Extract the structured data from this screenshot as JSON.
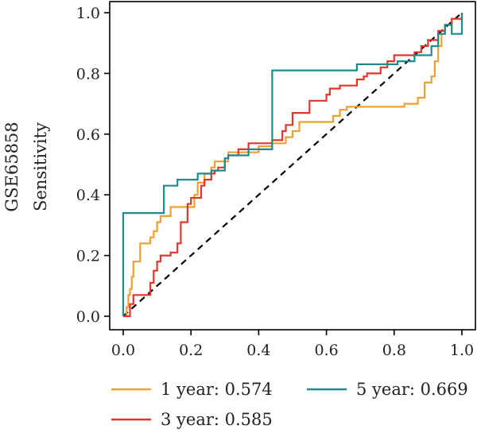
{
  "chart_data": {
    "type": "line",
    "dataset_label": "GSE65858",
    "xlabel": "",
    "ylabel": "Sensitivity",
    "xlim": [
      0,
      1
    ],
    "ylim": [
      0,
      1
    ],
    "x_ticks": [
      "0.0",
      "0.2",
      "0.4",
      "0.6",
      "0.8",
      "1.0"
    ],
    "y_ticks": [
      "0.0",
      "0.2",
      "0.4",
      "0.6",
      "0.8",
      "1.0"
    ],
    "grid": false,
    "legend_position": "bottom",
    "reference_line": {
      "style": "dashed",
      "color": "#000000",
      "from": [
        0,
        0
      ],
      "to": [
        1,
        1
      ]
    },
    "series": [
      {
        "name": "1 year: 0.574",
        "color": "#F0A030",
        "points": [
          [
            0,
            0
          ],
          [
            0.01,
            0
          ],
          [
            0.01,
            0.03
          ],
          [
            0.015,
            0.03
          ],
          [
            0.015,
            0.07
          ],
          [
            0.02,
            0.07
          ],
          [
            0.02,
            0.09
          ],
          [
            0.025,
            0.09
          ],
          [
            0.025,
            0.13
          ],
          [
            0.03,
            0.13
          ],
          [
            0.03,
            0.18
          ],
          [
            0.05,
            0.18
          ],
          [
            0.05,
            0.24
          ],
          [
            0.08,
            0.24
          ],
          [
            0.08,
            0.26
          ],
          [
            0.09,
            0.26
          ],
          [
            0.09,
            0.28
          ],
          [
            0.1,
            0.28
          ],
          [
            0.1,
            0.31
          ],
          [
            0.11,
            0.31
          ],
          [
            0.11,
            0.33
          ],
          [
            0.14,
            0.33
          ],
          [
            0.14,
            0.36
          ],
          [
            0.21,
            0.36
          ],
          [
            0.21,
            0.4
          ],
          [
            0.22,
            0.4
          ],
          [
            0.22,
            0.44
          ],
          [
            0.24,
            0.44
          ],
          [
            0.24,
            0.47
          ],
          [
            0.26,
            0.47
          ],
          [
            0.26,
            0.49
          ],
          [
            0.27,
            0.49
          ],
          [
            0.27,
            0.51
          ],
          [
            0.31,
            0.51
          ],
          [
            0.31,
            0.54
          ],
          [
            0.4,
            0.54
          ],
          [
            0.4,
            0.56
          ],
          [
            0.44,
            0.56
          ],
          [
            0.44,
            0.57
          ],
          [
            0.48,
            0.57
          ],
          [
            0.48,
            0.59
          ],
          [
            0.5,
            0.59
          ],
          [
            0.5,
            0.61
          ],
          [
            0.52,
            0.61
          ],
          [
            0.52,
            0.64
          ],
          [
            0.62,
            0.64
          ],
          [
            0.62,
            0.66
          ],
          [
            0.64,
            0.66
          ],
          [
            0.64,
            0.68
          ],
          [
            0.66,
            0.68
          ],
          [
            0.66,
            0.69
          ],
          [
            0.83,
            0.69
          ],
          [
            0.83,
            0.7
          ],
          [
            0.87,
            0.7
          ],
          [
            0.87,
            0.72
          ],
          [
            0.89,
            0.72
          ],
          [
            0.89,
            0.77
          ],
          [
            0.91,
            0.77
          ],
          [
            0.91,
            0.79
          ],
          [
            0.92,
            0.79
          ],
          [
            0.92,
            0.84
          ],
          [
            0.93,
            0.84
          ],
          [
            0.93,
            0.89
          ],
          [
            0.94,
            0.89
          ],
          [
            0.94,
            0.93
          ],
          [
            0.95,
            0.93
          ],
          [
            0.95,
            0.96
          ],
          [
            0.97,
            0.96
          ],
          [
            0.97,
            0.98
          ],
          [
            1,
            0.98
          ],
          [
            1,
            1
          ]
        ]
      },
      {
        "name": "3 year: 0.585",
        "color": "#E0362C",
        "points": [
          [
            0,
            0
          ],
          [
            0.02,
            0
          ],
          [
            0.02,
            0.04
          ],
          [
            0.03,
            0.04
          ],
          [
            0.03,
            0.07
          ],
          [
            0.08,
            0.07
          ],
          [
            0.08,
            0.11
          ],
          [
            0.09,
            0.11
          ],
          [
            0.09,
            0.15
          ],
          [
            0.1,
            0.15
          ],
          [
            0.1,
            0.18
          ],
          [
            0.11,
            0.18
          ],
          [
            0.11,
            0.2
          ],
          [
            0.14,
            0.2
          ],
          [
            0.14,
            0.21
          ],
          [
            0.16,
            0.21
          ],
          [
            0.16,
            0.24
          ],
          [
            0.17,
            0.24
          ],
          [
            0.17,
            0.31
          ],
          [
            0.19,
            0.31
          ],
          [
            0.19,
            0.37
          ],
          [
            0.2,
            0.37
          ],
          [
            0.2,
            0.39
          ],
          [
            0.23,
            0.39
          ],
          [
            0.23,
            0.43
          ],
          [
            0.24,
            0.43
          ],
          [
            0.24,
            0.45
          ],
          [
            0.26,
            0.45
          ],
          [
            0.26,
            0.47
          ],
          [
            0.27,
            0.47
          ],
          [
            0.27,
            0.48
          ],
          [
            0.28,
            0.48
          ],
          [
            0.28,
            0.49
          ],
          [
            0.3,
            0.49
          ],
          [
            0.3,
            0.52
          ],
          [
            0.31,
            0.52
          ],
          [
            0.31,
            0.53
          ],
          [
            0.34,
            0.53
          ],
          [
            0.34,
            0.55
          ],
          [
            0.37,
            0.55
          ],
          [
            0.37,
            0.57
          ],
          [
            0.44,
            0.57
          ],
          [
            0.44,
            0.58
          ],
          [
            0.47,
            0.58
          ],
          [
            0.47,
            0.61
          ],
          [
            0.48,
            0.61
          ],
          [
            0.48,
            0.63
          ],
          [
            0.5,
            0.63
          ],
          [
            0.5,
            0.67
          ],
          [
            0.55,
            0.67
          ],
          [
            0.55,
            0.71
          ],
          [
            0.6,
            0.71
          ],
          [
            0.6,
            0.73
          ],
          [
            0.61,
            0.73
          ],
          [
            0.61,
            0.75
          ],
          [
            0.64,
            0.75
          ],
          [
            0.64,
            0.76
          ],
          [
            0.69,
            0.76
          ],
          [
            0.69,
            0.78
          ],
          [
            0.71,
            0.78
          ],
          [
            0.71,
            0.79
          ],
          [
            0.72,
            0.79
          ],
          [
            0.72,
            0.8
          ],
          [
            0.76,
            0.8
          ],
          [
            0.76,
            0.82
          ],
          [
            0.78,
            0.82
          ],
          [
            0.78,
            0.84
          ],
          [
            0.8,
            0.84
          ],
          [
            0.8,
            0.86
          ],
          [
            0.86,
            0.86
          ],
          [
            0.86,
            0.87
          ],
          [
            0.88,
            0.87
          ],
          [
            0.88,
            0.89
          ],
          [
            0.9,
            0.89
          ],
          [
            0.9,
            0.91
          ],
          [
            0.93,
            0.91
          ],
          [
            0.93,
            0.94
          ],
          [
            0.95,
            0.94
          ],
          [
            0.95,
            0.96
          ],
          [
            0.97,
            0.96
          ],
          [
            0.97,
            0.98
          ],
          [
            1,
            0.98
          ],
          [
            1,
            1
          ]
        ]
      },
      {
        "name": "5 year: 0.669",
        "color": "#1C8C8C",
        "points": [
          [
            0,
            0
          ],
          [
            0,
            0.34
          ],
          [
            0.12,
            0.34
          ],
          [
            0.12,
            0.43
          ],
          [
            0.16,
            0.43
          ],
          [
            0.16,
            0.45
          ],
          [
            0.22,
            0.45
          ],
          [
            0.22,
            0.47
          ],
          [
            0.26,
            0.47
          ],
          [
            0.26,
            0.48
          ],
          [
            0.3,
            0.48
          ],
          [
            0.3,
            0.52
          ],
          [
            0.31,
            0.52
          ],
          [
            0.31,
            0.53
          ],
          [
            0.37,
            0.53
          ],
          [
            0.37,
            0.55
          ],
          [
            0.44,
            0.55
          ],
          [
            0.44,
            0.81
          ],
          [
            0.69,
            0.81
          ],
          [
            0.69,
            0.83
          ],
          [
            0.81,
            0.83
          ],
          [
            0.81,
            0.84
          ],
          [
            0.86,
            0.84
          ],
          [
            0.86,
            0.86
          ],
          [
            0.91,
            0.86
          ],
          [
            0.91,
            0.89
          ],
          [
            0.93,
            0.89
          ],
          [
            0.93,
            0.93
          ],
          [
            0.95,
            0.93
          ],
          [
            0.95,
            0.96
          ],
          [
            0.97,
            0.96
          ],
          [
            0.97,
            0.93
          ],
          [
            1,
            0.93
          ],
          [
            1,
            1
          ]
        ]
      }
    ]
  }
}
